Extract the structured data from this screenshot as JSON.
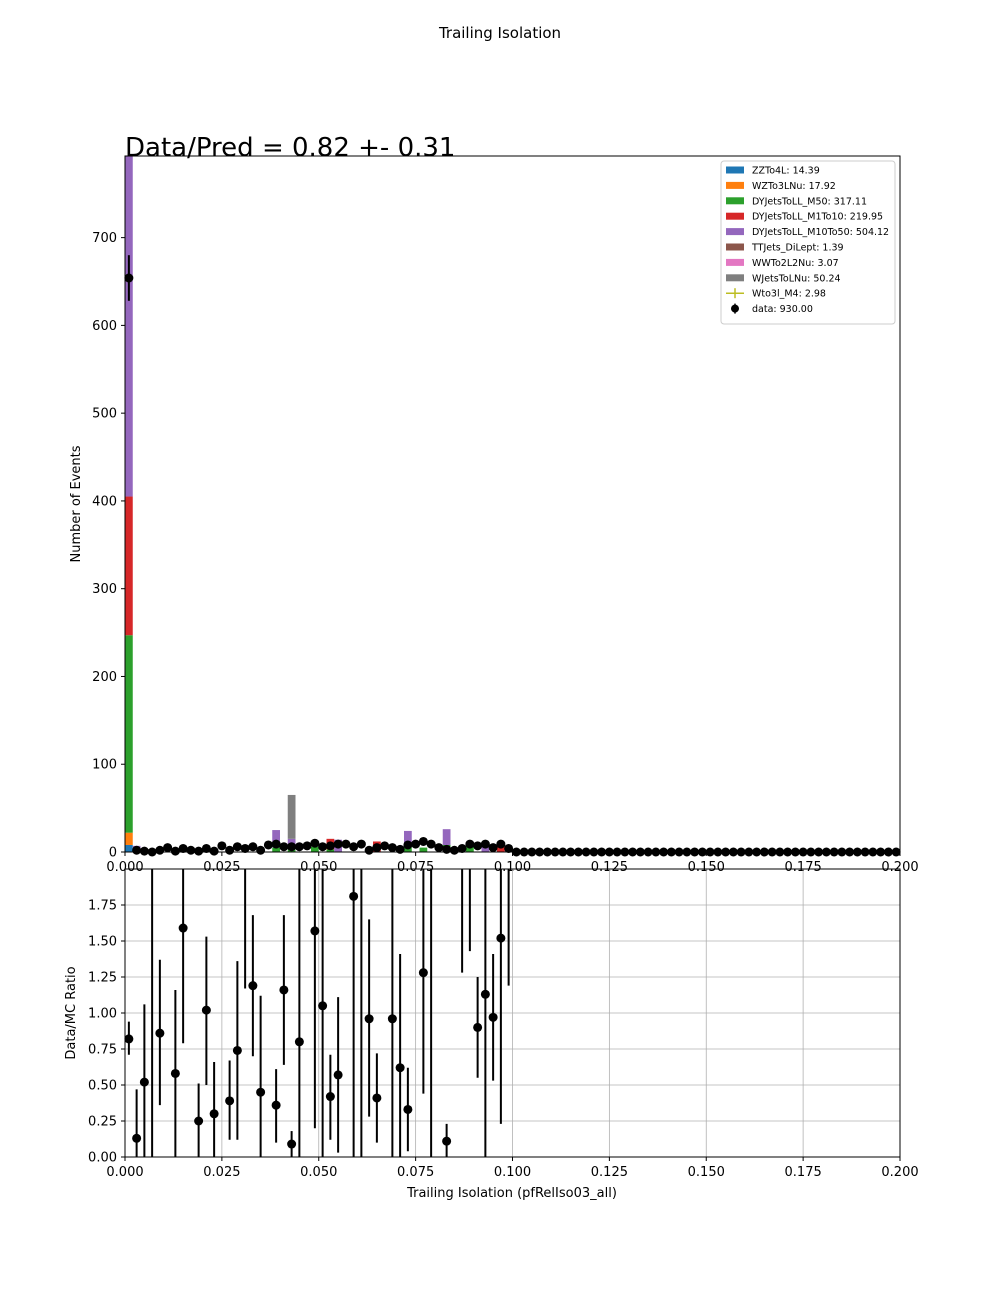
{
  "figure": {
    "suptitle": "Trailing Isolation",
    "top_title": "Data/Pred = 0.82 +- 0.31"
  },
  "chart_data": [
    {
      "type": "bar",
      "stacked": true,
      "ylabel": "Number of Events",
      "xlim": [
        0,
        0.2
      ],
      "ylim": [
        0,
        793
      ],
      "grid": false,
      "legend_placement": "top-right",
      "x_ticks": [
        "0.000",
        "0.025",
        "0.050",
        "0.075",
        "0.100",
        "0.125",
        "0.150",
        "0.175",
        "0.200"
      ],
      "y_ticks": [
        "0",
        "100",
        "200",
        "300",
        "400",
        "500",
        "600",
        "700"
      ],
      "legend": [
        {
          "label": "ZZTo4L: 14.39",
          "color": "#1f77b4",
          "marker": "patch"
        },
        {
          "label": "WZTo3LNu: 17.92",
          "color": "#ff7f0e",
          "marker": "patch"
        },
        {
          "label": "DYJetsToLL_M50: 317.11",
          "color": "#2ca02c",
          "marker": "patch"
        },
        {
          "label": "DYJetsToLL_M1To10: 219.95",
          "color": "#d62728",
          "marker": "patch"
        },
        {
          "label": "DYJetsToLL_M10To50: 504.12",
          "color": "#9467bd",
          "marker": "patch"
        },
        {
          "label": "TTJets_DiLept: 1.39",
          "color": "#8c564b",
          "marker": "patch"
        },
        {
          "label": "WWTo2L2Nu: 3.07",
          "color": "#e377c2",
          "marker": "patch"
        },
        {
          "label": "WJetsToLNu: 50.24",
          "color": "#7f7f7f",
          "marker": "patch"
        },
        {
          "label": "Wto3l_M4: 2.98",
          "color": "#bcbd22",
          "marker": "line"
        },
        {
          "label": "data: 930.00",
          "color": "#000000",
          "marker": "dot"
        }
      ],
      "mc_stacks": [
        {
          "x": 0.001,
          "segments": [
            {
              "color": "#1f77b4",
              "value": 8
            },
            {
              "color": "#ff7f0e",
              "value": 14
            },
            {
              "color": "#2ca02c",
              "value": 225
            },
            {
              "color": "#d62728",
              "value": 158
            },
            {
              "color": "#9467bd",
              "value": 388
            }
          ]
        },
        {
          "x": 0.003,
          "segments": [
            {
              "color": "#2ca02c",
              "value": 3
            },
            {
              "color": "#9467bd",
              "value": 4
            }
          ]
        },
        {
          "x": 0.039,
          "segments": [
            {
              "color": "#2ca02c",
              "value": 5
            },
            {
              "color": "#9467bd",
              "value": 20
            }
          ]
        },
        {
          "x": 0.043,
          "segments": [
            {
              "color": "#2ca02c",
              "value": 3
            },
            {
              "color": "#9467bd",
              "value": 12
            },
            {
              "color": "#7f7f7f",
              "value": 50
            }
          ]
        },
        {
          "x": 0.049,
          "segments": [
            {
              "color": "#2ca02c",
              "value": 6
            }
          ]
        },
        {
          "x": 0.053,
          "segments": [
            {
              "color": "#2ca02c",
              "value": 3
            },
            {
              "color": "#d62728",
              "value": 12
            }
          ]
        },
        {
          "x": 0.055,
          "segments": [
            {
              "color": "#9467bd",
              "value": 14
            }
          ]
        },
        {
          "x": 0.065,
          "segments": [
            {
              "color": "#d62728",
              "value": 12
            }
          ]
        },
        {
          "x": 0.073,
          "segments": [
            {
              "color": "#2ca02c",
              "value": 6
            },
            {
              "color": "#9467bd",
              "value": 18
            }
          ]
        },
        {
          "x": 0.077,
          "segments": [
            {
              "color": "#2ca02c",
              "value": 5
            }
          ]
        },
        {
          "x": 0.083,
          "segments": [
            {
              "color": "#2ca02c",
              "value": 8
            },
            {
              "color": "#9467bd",
              "value": 18
            }
          ]
        },
        {
          "x": 0.089,
          "segments": [
            {
              "color": "#2ca02c",
              "value": 7
            }
          ]
        },
        {
          "x": 0.093,
          "segments": [
            {
              "color": "#9467bd",
              "value": 8
            }
          ]
        },
        {
          "x": 0.097,
          "segments": [
            {
              "color": "#d62728",
              "value": 6
            }
          ]
        }
      ],
      "data_points": [
        {
          "x": 0.001,
          "y": 654,
          "err": 26
        },
        {
          "x": 0.003,
          "y": 2
        },
        {
          "x": 0.005,
          "y": 1
        },
        {
          "x": 0.007,
          "y": 0
        },
        {
          "x": 0.009,
          "y": 2
        },
        {
          "x": 0.011,
          "y": 5
        },
        {
          "x": 0.013,
          "y": 1
        },
        {
          "x": 0.015,
          "y": 4
        },
        {
          "x": 0.017,
          "y": 2
        },
        {
          "x": 0.019,
          "y": 1
        },
        {
          "x": 0.021,
          "y": 4
        },
        {
          "x": 0.023,
          "y": 1
        },
        {
          "x": 0.025,
          "y": 7
        },
        {
          "x": 0.027,
          "y": 2
        },
        {
          "x": 0.029,
          "y": 6
        },
        {
          "x": 0.031,
          "y": 4
        },
        {
          "x": 0.033,
          "y": 6
        },
        {
          "x": 0.035,
          "y": 2
        },
        {
          "x": 0.037,
          "y": 8
        },
        {
          "x": 0.039,
          "y": 9
        },
        {
          "x": 0.041,
          "y": 6
        },
        {
          "x": 0.043,
          "y": 6
        },
        {
          "x": 0.045,
          "y": 6
        },
        {
          "x": 0.047,
          "y": 7
        },
        {
          "x": 0.049,
          "y": 10
        },
        {
          "x": 0.051,
          "y": 6
        },
        {
          "x": 0.053,
          "y": 7
        },
        {
          "x": 0.055,
          "y": 9
        },
        {
          "x": 0.057,
          "y": 9
        },
        {
          "x": 0.059,
          "y": 6
        },
        {
          "x": 0.061,
          "y": 9
        },
        {
          "x": 0.063,
          "y": 2
        },
        {
          "x": 0.065,
          "y": 5
        },
        {
          "x": 0.067,
          "y": 7
        },
        {
          "x": 0.069,
          "y": 5
        },
        {
          "x": 0.071,
          "y": 3
        },
        {
          "x": 0.073,
          "y": 8
        },
        {
          "x": 0.075,
          "y": 9
        },
        {
          "x": 0.077,
          "y": 12
        },
        {
          "x": 0.079,
          "y": 9
        },
        {
          "x": 0.081,
          "y": 5
        },
        {
          "x": 0.083,
          "y": 3
        },
        {
          "x": 0.085,
          "y": 2
        },
        {
          "x": 0.087,
          "y": 4
        },
        {
          "x": 0.089,
          "y": 9
        },
        {
          "x": 0.091,
          "y": 7
        },
        {
          "x": 0.093,
          "y": 9
        },
        {
          "x": 0.095,
          "y": 5
        },
        {
          "x": 0.097,
          "y": 9
        },
        {
          "x": 0.099,
          "y": 4
        },
        {
          "x": 0.101,
          "y": 0
        },
        {
          "x": 0.103,
          "y": 0
        },
        {
          "x": 0.105,
          "y": 0
        },
        {
          "x": 0.107,
          "y": 0
        },
        {
          "x": 0.109,
          "y": 0
        },
        {
          "x": 0.111,
          "y": 0
        },
        {
          "x": 0.113,
          "y": 0
        },
        {
          "x": 0.115,
          "y": 0
        },
        {
          "x": 0.117,
          "y": 0
        },
        {
          "x": 0.119,
          "y": 0
        },
        {
          "x": 0.121,
          "y": 0
        },
        {
          "x": 0.123,
          "y": 0
        },
        {
          "x": 0.125,
          "y": 0
        },
        {
          "x": 0.127,
          "y": 0
        },
        {
          "x": 0.129,
          "y": 0
        },
        {
          "x": 0.131,
          "y": 0
        },
        {
          "x": 0.133,
          "y": 0
        },
        {
          "x": 0.135,
          "y": 0
        },
        {
          "x": 0.137,
          "y": 0
        },
        {
          "x": 0.139,
          "y": 0
        },
        {
          "x": 0.141,
          "y": 0
        },
        {
          "x": 0.143,
          "y": 0
        },
        {
          "x": 0.145,
          "y": 0
        },
        {
          "x": 0.147,
          "y": 0
        },
        {
          "x": 0.149,
          "y": 0
        },
        {
          "x": 0.151,
          "y": 0
        },
        {
          "x": 0.153,
          "y": 0
        },
        {
          "x": 0.155,
          "y": 0
        },
        {
          "x": 0.157,
          "y": 0
        },
        {
          "x": 0.159,
          "y": 0
        },
        {
          "x": 0.161,
          "y": 0
        },
        {
          "x": 0.163,
          "y": 0
        },
        {
          "x": 0.165,
          "y": 0
        },
        {
          "x": 0.167,
          "y": 0
        },
        {
          "x": 0.169,
          "y": 0
        },
        {
          "x": 0.171,
          "y": 0
        },
        {
          "x": 0.173,
          "y": 0
        },
        {
          "x": 0.175,
          "y": 0
        },
        {
          "x": 0.177,
          "y": 0
        },
        {
          "x": 0.179,
          "y": 0
        },
        {
          "x": 0.181,
          "y": 0
        },
        {
          "x": 0.183,
          "y": 0
        },
        {
          "x": 0.185,
          "y": 0
        },
        {
          "x": 0.187,
          "y": 0
        },
        {
          "x": 0.189,
          "y": 0
        },
        {
          "x": 0.191,
          "y": 0
        },
        {
          "x": 0.193,
          "y": 0
        },
        {
          "x": 0.195,
          "y": 0
        },
        {
          "x": 0.197,
          "y": 0
        },
        {
          "x": 0.199,
          "y": 0
        }
      ]
    },
    {
      "type": "scatter",
      "xlabel": "Trailing Isolation (pfRelIso03_all)",
      "ylabel": "Data/MC Ratio",
      "xlim": [
        0,
        0.2
      ],
      "ylim": [
        0,
        2.0
      ],
      "grid": true,
      "x_ticks": [
        "0.000",
        "0.025",
        "0.050",
        "0.075",
        "0.100",
        "0.125",
        "0.150",
        "0.175",
        "0.200"
      ],
      "y_ticks": [
        "0.00",
        "0.25",
        "0.50",
        "0.75",
        "1.00",
        "1.25",
        "1.50",
        "1.75"
      ],
      "points": [
        {
          "x": 0.001,
          "y": 0.82,
          "lo": 0.71,
          "hi": 0.94
        },
        {
          "x": 0.003,
          "y": 0.13,
          "lo": 0.0,
          "hi": 0.47
        },
        {
          "x": 0.005,
          "y": 0.52,
          "lo": 0.0,
          "hi": 1.06
        },
        {
          "x": 0.007,
          "y": null,
          "lo": 0.0,
          "hi": 2.0
        },
        {
          "x": 0.009,
          "y": 0.86,
          "lo": 0.36,
          "hi": 1.37
        },
        {
          "x": 0.013,
          "y": 0.58,
          "lo": 0.0,
          "hi": 1.16
        },
        {
          "x": 0.015,
          "y": 1.59,
          "lo": 0.79,
          "hi": 2.0
        },
        {
          "x": 0.019,
          "y": 0.25,
          "lo": 0.0,
          "hi": 0.51
        },
        {
          "x": 0.021,
          "y": 1.02,
          "lo": 0.5,
          "hi": 1.53
        },
        {
          "x": 0.023,
          "y": 0.3,
          "lo": 0.0,
          "hi": 0.66
        },
        {
          "x": 0.027,
          "y": 0.39,
          "lo": 0.12,
          "hi": 0.67
        },
        {
          "x": 0.029,
          "y": 0.74,
          "lo": 0.12,
          "hi": 1.36
        },
        {
          "x": 0.031,
          "y": null,
          "lo": 1.17,
          "hi": 2.0
        },
        {
          "x": 0.033,
          "y": 1.19,
          "lo": 0.7,
          "hi": 1.68
        },
        {
          "x": 0.035,
          "y": 0.45,
          "lo": 0.0,
          "hi": 1.12
        },
        {
          "x": 0.039,
          "y": 0.36,
          "lo": 0.1,
          "hi": 0.61
        },
        {
          "x": 0.041,
          "y": 1.16,
          "lo": 0.64,
          "hi": 1.68
        },
        {
          "x": 0.043,
          "y": 0.09,
          "lo": 0.0,
          "hi": 0.18
        },
        {
          "x": 0.045,
          "y": 0.8,
          "lo": 0.0,
          "hi": 2.0
        },
        {
          "x": 0.049,
          "y": 1.57,
          "lo": 0.2,
          "hi": 2.0
        },
        {
          "x": 0.051,
          "y": 1.05,
          "lo": 0.0,
          "hi": 2.0
        },
        {
          "x": 0.053,
          "y": 0.42,
          "lo": 0.12,
          "hi": 0.71
        },
        {
          "x": 0.055,
          "y": 0.57,
          "lo": 0.03,
          "hi": 1.11
        },
        {
          "x": 0.059,
          "y": 1.81,
          "lo": 0.0,
          "hi": 2.0
        },
        {
          "x": 0.061,
          "y": null,
          "lo": 0.0,
          "hi": 2.0
        },
        {
          "x": 0.063,
          "y": 0.96,
          "lo": 0.28,
          "hi": 1.65
        },
        {
          "x": 0.065,
          "y": 0.41,
          "lo": 0.1,
          "hi": 0.72
        },
        {
          "x": 0.069,
          "y": 0.96,
          "lo": 0.0,
          "hi": 2.0
        },
        {
          "x": 0.071,
          "y": 0.62,
          "lo": 0.0,
          "hi": 1.41
        },
        {
          "x": 0.073,
          "y": 0.33,
          "lo": 0.04,
          "hi": 0.62
        },
        {
          "x": 0.077,
          "y": 1.28,
          "lo": 0.44,
          "hi": 2.0
        },
        {
          "x": 0.079,
          "y": null,
          "lo": 0.0,
          "hi": 2.0
        },
        {
          "x": 0.083,
          "y": 0.11,
          "lo": 0.0,
          "hi": 0.23
        },
        {
          "x": 0.087,
          "y": null,
          "lo": 1.28,
          "hi": 2.0
        },
        {
          "x": 0.089,
          "y": null,
          "lo": 1.43,
          "hi": 2.0
        },
        {
          "x": 0.091,
          "y": 0.9,
          "lo": 0.55,
          "hi": 1.25
        },
        {
          "x": 0.093,
          "y": 1.13,
          "lo": 0.0,
          "hi": 2.0
        },
        {
          "x": 0.095,
          "y": 0.97,
          "lo": 0.53,
          "hi": 1.41
        },
        {
          "x": 0.097,
          "y": 1.52,
          "lo": 0.23,
          "hi": 2.0
        },
        {
          "x": 0.099,
          "y": null,
          "lo": 1.19,
          "hi": 2.0
        }
      ]
    }
  ]
}
